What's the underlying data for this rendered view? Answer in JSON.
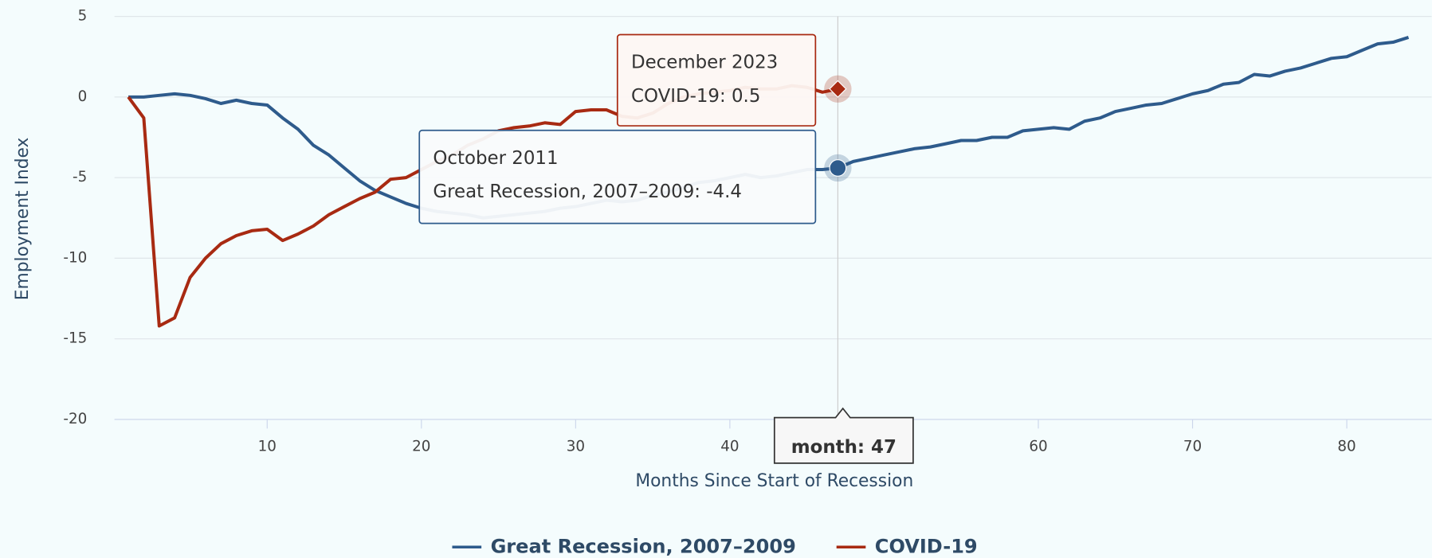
{
  "chart_data": {
    "type": "line",
    "x_label": "Months Since Start of Recession",
    "y_label": "Employment Index",
    "x": [
      1,
      2,
      3,
      4,
      5,
      6,
      7,
      8,
      9,
      10,
      11,
      12,
      13,
      14,
      15,
      16,
      17,
      18,
      19,
      20,
      21,
      22,
      23,
      24,
      25,
      26,
      27,
      28,
      29,
      30,
      31,
      32,
      33,
      34,
      35,
      36,
      37,
      38,
      39,
      40,
      41,
      42,
      43,
      44,
      45,
      46,
      47,
      48,
      49,
      50,
      51,
      52,
      53,
      54,
      55,
      56,
      57,
      58,
      59,
      60,
      61,
      62,
      63,
      64,
      65,
      66,
      67,
      68,
      69,
      70,
      71,
      72,
      73,
      74,
      75,
      76,
      77,
      78,
      79,
      80,
      81,
      82,
      83,
      84
    ],
    "series": [
      {
        "name": "Great Recession, 2007–2009",
        "color": "#2e5b8c",
        "values": [
          0,
          0,
          0.1,
          0.2,
          0.1,
          -0.1,
          -0.4,
          -0.2,
          -0.4,
          -0.5,
          -1.3,
          -2.0,
          -3.0,
          -3.6,
          -4.4,
          -5.2,
          -5.8,
          -6.2,
          -6.6,
          -6.9,
          -7.1,
          -7.2,
          -7.3,
          -7.5,
          -7.4,
          -7.3,
          -7.2,
          -7.1,
          -6.9,
          -6.8,
          -6.6,
          -6.4,
          -6.5,
          -6.4,
          -6.1,
          -5.9,
          -5.6,
          -5.3,
          -5.2,
          -5.0,
          -4.8,
          -5.0,
          -4.9,
          -4.7,
          -4.5,
          -4.5,
          -4.4,
          -4.0,
          -3.8,
          -3.6,
          -3.4,
          -3.2,
          -3.1,
          -2.9,
          -2.7,
          -2.7,
          -2.5,
          -2.5,
          -2.1,
          -2.0,
          -1.9,
          -2.0,
          -1.5,
          -1.3,
          -0.9,
          -0.7,
          -0.5,
          -0.4,
          -0.1,
          0.2,
          0.4,
          0.8,
          0.9,
          1.4,
          1.3,
          1.6,
          1.8,
          2.1,
          2.4,
          2.5,
          2.9,
          3.3,
          3.4,
          3.7
        ]
      },
      {
        "name": "COVID-19",
        "color": "#a82a12",
        "values": [
          0,
          -1.3,
          -14.2,
          -13.7,
          -11.2,
          -10.0,
          -9.1,
          -8.6,
          -8.3,
          -8.2,
          -8.9,
          -8.5,
          -8.0,
          -7.3,
          -6.8,
          -6.3,
          -5.9,
          -5.1,
          -5.0,
          -4.5,
          -4.0,
          -3.6,
          -3.0,
          -2.6,
          -2.1,
          -1.9,
          -1.8,
          -1.6,
          -1.7,
          -0.9,
          -0.8,
          -0.8,
          -1.2,
          -1.3,
          -1.0,
          -0.4,
          0,
          0.2,
          0.3,
          0.4,
          0.6,
          0.5,
          0.5,
          0.7,
          0.6,
          0.3,
          0.5,
          null,
          null,
          null,
          null,
          null,
          null,
          null,
          null,
          null,
          null,
          null,
          null,
          null,
          null,
          null,
          null,
          null,
          null,
          null,
          null,
          null,
          null,
          null,
          null,
          null,
          null,
          null,
          null,
          null,
          null,
          null,
          null,
          null,
          null,
          null,
          null,
          null
        ]
      }
    ],
    "xlim": [
      0.1,
      85.5
    ],
    "ylim": [
      -20,
      5
    ],
    "xticks": [
      10,
      20,
      30,
      40,
      50,
      60,
      70,
      80
    ],
    "yticks": [
      5,
      0,
      -5,
      -10,
      -15,
      -20
    ],
    "grid": true,
    "legend": "bottom",
    "tooltips": [
      {
        "title": "December 2023",
        "text": "COVID-19: 0.5"
      },
      {
        "title": "October 2011",
        "text": "Great Recession, 2007–2009: -4.4"
      }
    ],
    "crosshair_label": "month: 47"
  }
}
